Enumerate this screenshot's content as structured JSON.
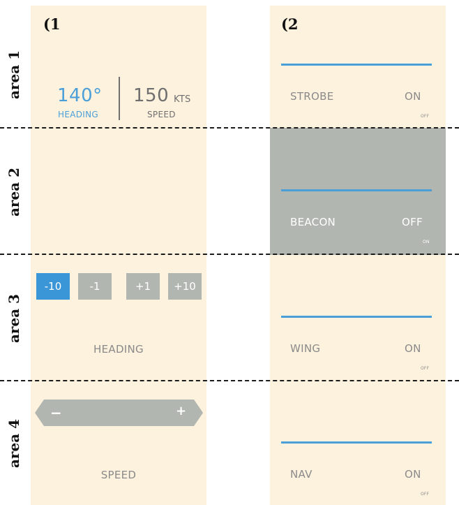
{
  "panels": [
    {
      "number": "(1"
    },
    {
      "number": "(2"
    }
  ],
  "areas": [
    "area 1",
    "area 2",
    "area 3",
    "area 4"
  ],
  "readout": {
    "heading_value": "140°",
    "heading_label": "HEADING",
    "speed_value": "150",
    "speed_unit": "KTS",
    "speed_label": "SPEED"
  },
  "heading_control": {
    "buttons": [
      "-10",
      "-1",
      "+1",
      "+10"
    ],
    "selected": "-10",
    "caption": "HEADING"
  },
  "speed_control": {
    "minus": "−",
    "plus": "+",
    "caption": "SPEED"
  },
  "lights": [
    {
      "name": "STROBE",
      "state": "ON",
      "alt": "OFF",
      "highlighted": false
    },
    {
      "name": "BEACON",
      "state": "OFF",
      "alt": "ON",
      "highlighted": true
    },
    {
      "name": "WING",
      "state": "ON",
      "alt": "OFF",
      "highlighted": false
    },
    {
      "name": "NAV",
      "state": "ON",
      "alt": "OFF",
      "highlighted": false
    }
  ],
  "colors": {
    "panel_bg": "#fdf2de",
    "accent_blue": "#3a96d6",
    "control_gray": "#b2b6b0",
    "text_gray": "#8a8a8a"
  }
}
